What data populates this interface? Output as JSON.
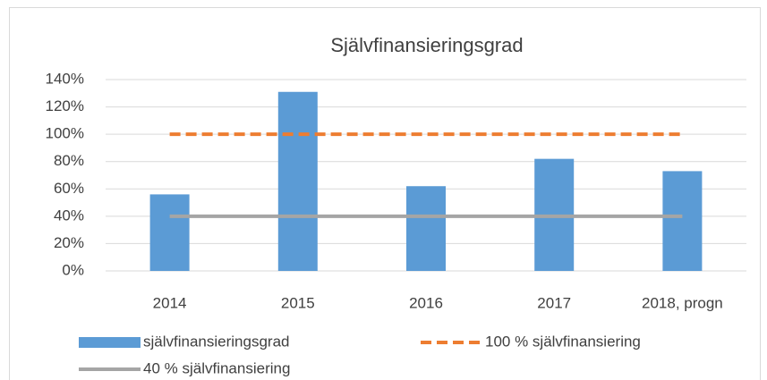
{
  "chart_data": {
    "type": "bar",
    "title": "Självfinansieringsgrad",
    "categories": [
      "2014",
      "2015",
      "2016",
      "2017",
      "2018, progn"
    ],
    "series": [
      {
        "name": "självfinansieringsgrad",
        "type": "bar",
        "color": "#5b9bd5",
        "values": [
          56,
          131,
          62,
          82,
          73
        ]
      },
      {
        "name": "100 % självfinansiering",
        "type": "line",
        "color": "#ed7d31",
        "dashed": true,
        "values": [
          100,
          100,
          100,
          100,
          100
        ]
      },
      {
        "name": "40 % självfinansiering",
        "type": "line",
        "color": "#a5a5a5",
        "dashed": false,
        "values": [
          40,
          40,
          40,
          40,
          40
        ]
      }
    ],
    "ylim": [
      0,
      140
    ],
    "yticks": [
      {
        "value": 0,
        "label": "0%"
      },
      {
        "value": 20,
        "label": "20%"
      },
      {
        "value": 40,
        "label": "40%"
      },
      {
        "value": 60,
        "label": "60%"
      },
      {
        "value": 80,
        "label": "80%"
      },
      {
        "value": 100,
        "label": "100%"
      },
      {
        "value": 120,
        "label": "120%"
      },
      {
        "value": 140,
        "label": "140%"
      }
    ],
    "grid": true,
    "legend": "bottom"
  }
}
